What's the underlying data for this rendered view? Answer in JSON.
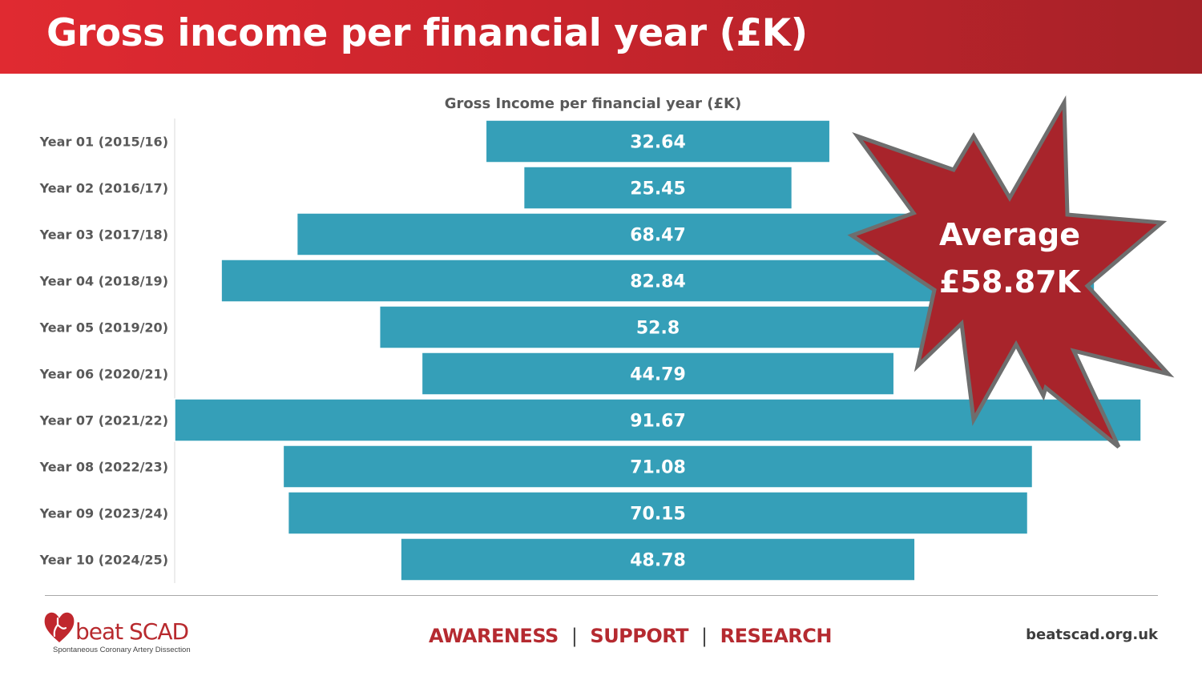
{
  "header": {
    "title": "Gross income per financial year (£K)"
  },
  "chart_data": {
    "type": "bar",
    "orientation": "horizontal",
    "alignment": "centered",
    "title": "Gross Income per financial year (£K)",
    "categories": [
      "Year 01 (2015/16)",
      "Year 02 (2016/17)",
      "Year 03 (2017/18)",
      "Year 04 (2018/19)",
      "Year 05 (2019/20)",
      "Year 06 (2020/21)",
      "Year 07 (2021/22)",
      "Year 08 (2022/23)",
      "Year 09 (2023/24)",
      "Year 10 (2024/25)"
    ],
    "values": [
      32.64,
      25.45,
      68.47,
      82.84,
      52.8,
      44.79,
      91.67,
      71.08,
      70.15,
      48.78
    ],
    "data_labels": [
      "32.64",
      "25.45",
      "68.47",
      "82.84",
      "52.8",
      "44.79",
      "91.67",
      "71.08",
      "70.15",
      "48.78"
    ],
    "xlim": [
      0,
      91.67
    ],
    "grid": false,
    "legend": "none",
    "bar_color": "#359fb8",
    "label_color": "#ffffff",
    "callout": {
      "line1": "Average",
      "line2": "£58.87K",
      "fill": "#a8242b",
      "stroke": "#6e6e6e"
    }
  },
  "footer": {
    "brand_name": "beat SCAD",
    "brand_subtitle": "Spontaneous Coronary Artery Dissection",
    "logo_icon": "heart-icon",
    "tagline": [
      "AWARENESS",
      "SUPPORT",
      "RESEARCH"
    ],
    "separator": "|",
    "url": "beatscad.org.uk",
    "accent_color": "#b52a30"
  }
}
